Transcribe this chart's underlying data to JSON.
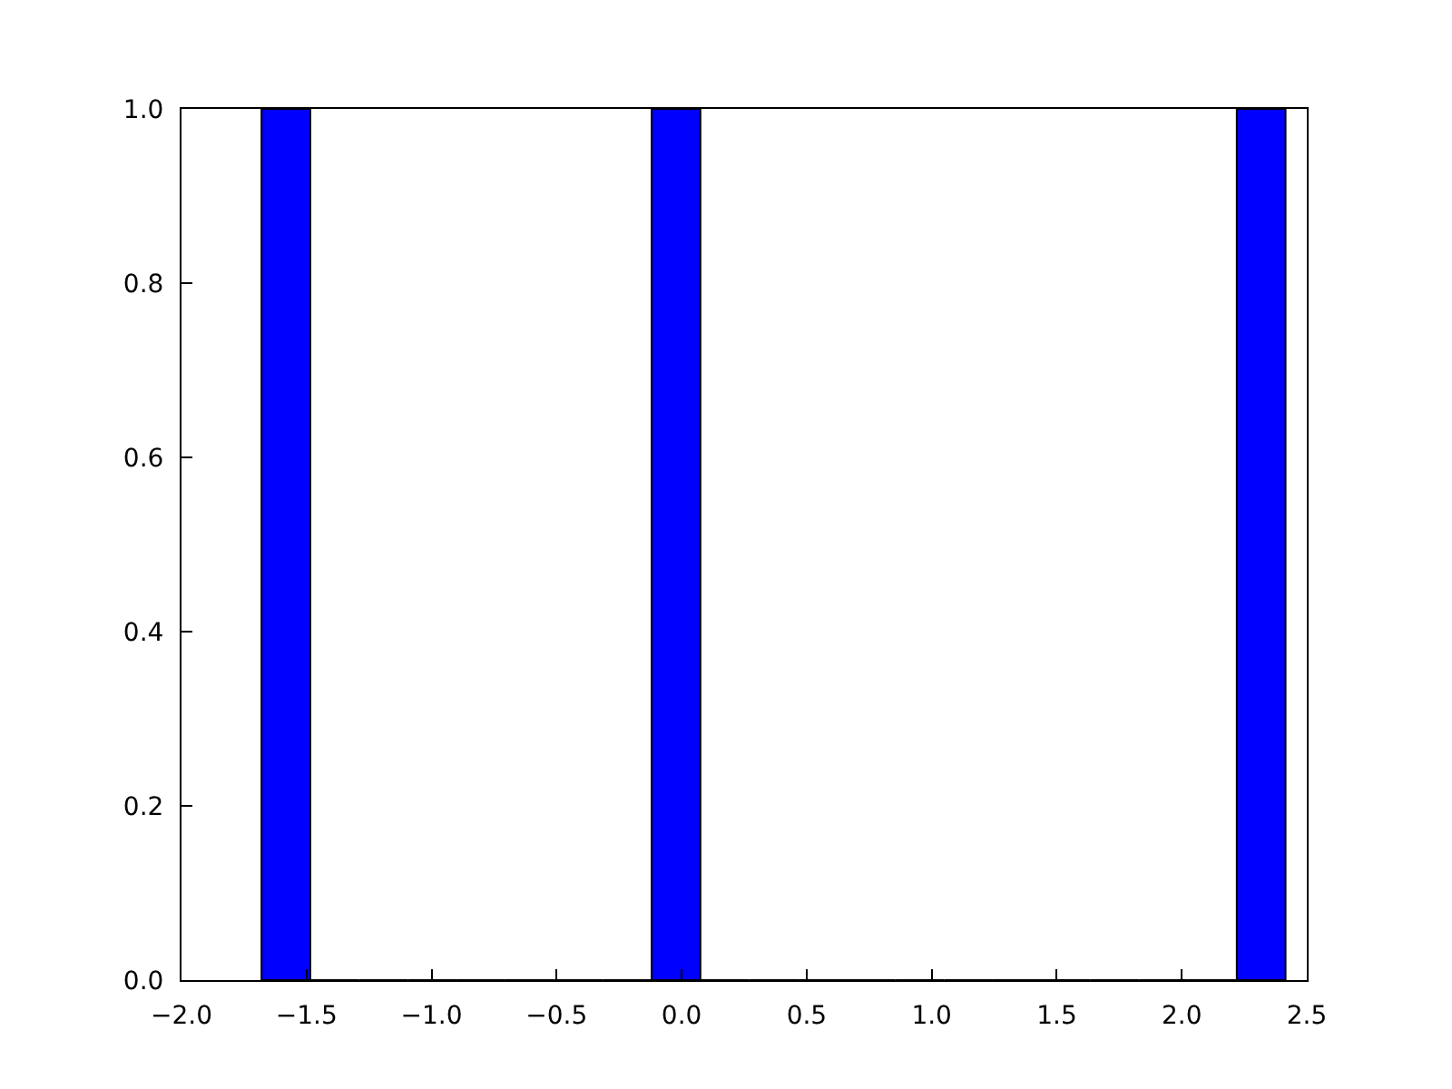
{
  "chart_data": {
    "type": "histogram",
    "bins": [
      -1.68,
      -1.485,
      -1.29,
      -1.095,
      -0.9,
      -0.705,
      -0.51,
      -0.315,
      -0.12,
      0.075,
      0.27,
      0.465,
      0.66,
      0.855,
      1.05,
      1.245,
      1.44,
      1.635,
      1.83,
      2.025,
      2.22,
      2.415
    ],
    "values": [
      1,
      0,
      0,
      0,
      0,
      0,
      0,
      0,
      1,
      0,
      0,
      0,
      0,
      0,
      0,
      0,
      0,
      0,
      0,
      0,
      1
    ],
    "color": "#0000ff",
    "xlim": [
      -2.0,
      2.5
    ],
    "xticks": [
      {
        "value": -2.0,
        "label": "−2.0"
      },
      {
        "value": -1.5,
        "label": "−1.5"
      },
      {
        "value": -1.0,
        "label": "−1.0"
      },
      {
        "value": -0.5,
        "label": "−0.5"
      },
      {
        "value": 0.0,
        "label": "0.0"
      },
      {
        "value": 0.5,
        "label": "0.5"
      },
      {
        "value": 1.0,
        "label": "1.0"
      },
      {
        "value": 1.5,
        "label": "1.5"
      },
      {
        "value": 2.0,
        "label": "2.0"
      },
      {
        "value": 2.5,
        "label": "2.5"
      }
    ],
    "ylim": [
      0.0,
      1.0
    ],
    "yticks": [
      {
        "value": 0.0,
        "label": "0.0"
      },
      {
        "value": 0.2,
        "label": "0.2"
      },
      {
        "value": 0.4,
        "label": "0.4"
      },
      {
        "value": 0.6,
        "label": "0.6"
      },
      {
        "value": 0.8,
        "label": "0.8"
      },
      {
        "value": 1.0,
        "label": "1.0"
      }
    ],
    "grid": false
  }
}
